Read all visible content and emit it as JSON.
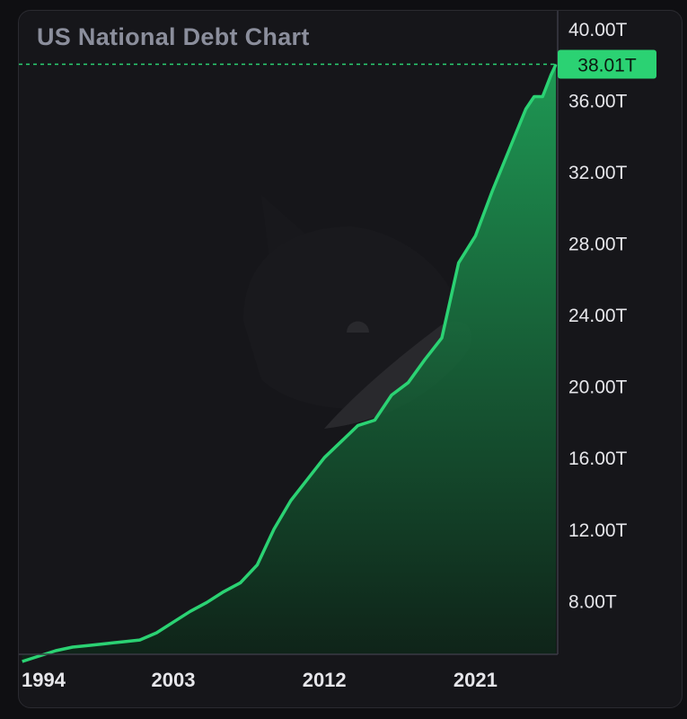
{
  "colors": {
    "background": "#16161a",
    "line": "#2bd273",
    "area_top": "#1f9f57",
    "area_bottom": "#0e2418",
    "badge": "#2bd273",
    "axis": "#3a3a44"
  },
  "watermark_icon": "whale-logo-icon",
  "chart_data": {
    "type": "area",
    "title": "US National Debt Chart",
    "xlabel": "",
    "ylabel": "",
    "x_unit": "year",
    "xlim": [
      1993.8,
      2025.9
    ],
    "ylim": [
      5.0,
      41.0
    ],
    "x_ticks": [
      1994,
      2003,
      2012,
      2021
    ],
    "x_tick_labels": [
      "1994",
      "2003",
      "2012",
      "2021"
    ],
    "y_ticks": [
      8,
      12,
      16,
      20,
      24,
      28,
      32,
      36,
      40
    ],
    "y_tick_labels": [
      "8.00T",
      "12.00T",
      "16.00T",
      "20.00T",
      "24.00T",
      "28.00T",
      "32.00T",
      "36.00T",
      "40.00T"
    ],
    "current_value": 38.01,
    "current_label": "38.01T",
    "grid": false,
    "series": [
      {
        "unit": "trillion USD",
        "points": [
          [
            1994.0,
            4.6
          ],
          [
            1995.0,
            4.9
          ],
          [
            1996.0,
            5.2
          ],
          [
            1997.0,
            5.4
          ],
          [
            1998.0,
            5.5
          ],
          [
            1999.0,
            5.6
          ],
          [
            2000.0,
            5.7
          ],
          [
            2001.0,
            5.8
          ],
          [
            2002.0,
            6.2
          ],
          [
            2003.0,
            6.8
          ],
          [
            2004.0,
            7.4
          ],
          [
            2005.0,
            7.9
          ],
          [
            2006.0,
            8.5
          ],
          [
            2007.0,
            9.0
          ],
          [
            2008.0,
            10.0
          ],
          [
            2009.0,
            12.0
          ],
          [
            2010.0,
            13.6
          ],
          [
            2011.0,
            14.8
          ],
          [
            2012.0,
            16.0
          ],
          [
            2013.0,
            16.9
          ],
          [
            2014.0,
            17.8
          ],
          [
            2015.0,
            18.1
          ],
          [
            2016.0,
            19.5
          ],
          [
            2017.0,
            20.2
          ],
          [
            2018.0,
            21.5
          ],
          [
            2019.0,
            22.7
          ],
          [
            2020.0,
            26.9
          ],
          [
            2021.0,
            28.4
          ],
          [
            2022.0,
            30.9
          ],
          [
            2023.0,
            33.2
          ],
          [
            2024.0,
            35.5
          ],
          [
            2024.5,
            36.2
          ],
          [
            2025.0,
            36.2
          ],
          [
            2025.5,
            37.4
          ],
          [
            2025.8,
            38.01
          ]
        ]
      }
    ]
  }
}
